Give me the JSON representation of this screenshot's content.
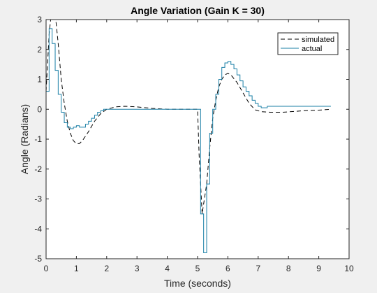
{
  "chart_data": {
    "type": "line",
    "title": "Angle Variation (Gain K = 30)",
    "xlabel": "Time (seconds)",
    "ylabel": "Angle (Radians)",
    "xlim": [
      0,
      10
    ],
    "xticks": [
      0,
      1,
      2,
      3,
      4,
      5,
      6,
      7,
      8,
      9,
      10
    ],
    "ylim": [
      -5,
      3
    ],
    "yticks": [
      -5,
      -4,
      -3,
      -2,
      -1,
      0,
      1,
      2,
      3
    ],
    "legend": "top-right",
    "series": [
      {
        "name": "simulated",
        "color": "#000000",
        "dash": true,
        "step": false,
        "x": [
          0,
          0.1,
          0.2,
          0.3,
          0.4,
          0.5,
          0.6,
          0.7,
          0.8,
          0.9,
          1.0,
          1.1,
          1.2,
          1.4,
          1.6,
          1.8,
          2.0,
          2.3,
          2.6,
          3.0,
          3.5,
          4.0,
          5.0,
          5.05,
          5.15,
          5.3,
          5.4,
          5.5,
          5.6,
          5.7,
          5.8,
          5.9,
          6.0,
          6.1,
          6.3,
          6.5,
          6.7,
          6.9,
          7.1,
          7.4,
          7.8,
          8.5,
          9.0,
          9.4
        ],
        "values": [
          0.6,
          2.5,
          3.5,
          3.2,
          2.2,
          1.0,
          0.2,
          -0.4,
          -0.8,
          -1.05,
          -1.15,
          -1.15,
          -1.05,
          -0.75,
          -0.4,
          -0.15,
          0,
          0.08,
          0.1,
          0.08,
          0.03,
          0,
          0,
          -1.5,
          -3.5,
          -2.5,
          -1.3,
          -0.3,
          0.3,
          0.75,
          1.0,
          1.15,
          1.2,
          1.15,
          0.9,
          0.55,
          0.2,
          -0.02,
          -0.08,
          -0.1,
          -0.1,
          -0.05,
          -0.03,
          0
        ]
      },
      {
        "name": "actual",
        "color": "#1a7fa6",
        "dash": false,
        "step": true,
        "x": [
          0,
          0.1,
          0.2,
          0.3,
          0.4,
          0.5,
          0.6,
          0.7,
          0.8,
          0.9,
          1.0,
          1.1,
          1.2,
          1.3,
          1.4,
          1.5,
          1.6,
          1.7,
          1.8,
          1.9,
          2.0,
          3.0,
          4.0,
          5.0,
          5.1,
          5.2,
          5.3,
          5.4,
          5.5,
          5.6,
          5.7,
          5.8,
          5.9,
          6.0,
          6.1,
          6.2,
          6.3,
          6.4,
          6.5,
          6.6,
          6.7,
          6.8,
          6.9,
          7.0,
          7.1,
          7.2,
          7.3,
          9.4
        ],
        "values": [
          0.6,
          2.7,
          2.2,
          1.3,
          0.5,
          -0.1,
          -0.45,
          -0.6,
          -0.65,
          -0.6,
          -0.55,
          -0.6,
          -0.6,
          -0.5,
          -0.4,
          -0.3,
          -0.2,
          -0.1,
          -0.05,
          0,
          0,
          0,
          0,
          0,
          -3.5,
          -4.8,
          -2.5,
          -0.8,
          0,
          0.5,
          1.0,
          1.4,
          1.55,
          1.6,
          1.5,
          1.35,
          1.15,
          0.95,
          0.75,
          0.6,
          0.45,
          0.3,
          0.2,
          0.1,
          0.05,
          0.05,
          0.1,
          0.1
        ]
      }
    ]
  }
}
